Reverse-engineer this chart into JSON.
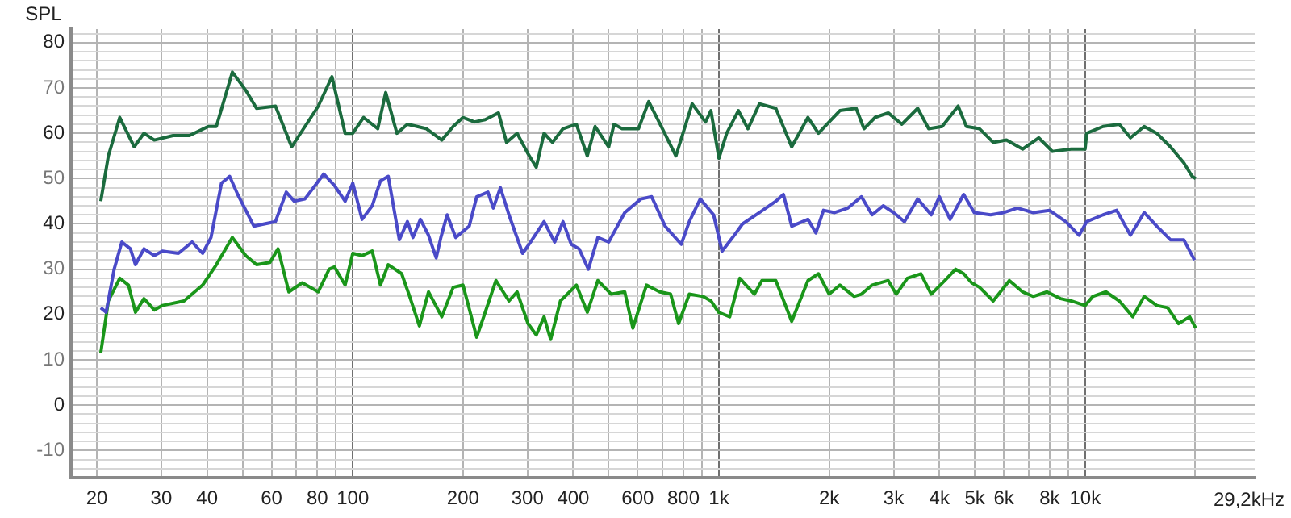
{
  "chart_data": {
    "type": "line",
    "ylabel": "SPL",
    "xlim": [
      17,
      29200
    ],
    "ylim": [
      -16,
      83
    ],
    "log": "x",
    "grid": true,
    "legend": false,
    "marker": "none",
    "line_style": "solid",
    "xticks": [
      20,
      30,
      40,
      {
        "value": 50,
        "label": null
      },
      60,
      {
        "value": 70,
        "label": null
      },
      80,
      {
        "value": 90,
        "label": null
      },
      100,
      200,
      300,
      400,
      {
        "value": 500,
        "label": null
      },
      600,
      {
        "value": 700,
        "label": null
      },
      800,
      {
        "value": 900,
        "label": null
      },
      {
        "value": 1000,
        "label": "1k"
      },
      {
        "value": 2000,
        "label": "2k"
      },
      {
        "value": 3000,
        "label": "3k"
      },
      {
        "value": 4000,
        "label": "4k"
      },
      {
        "value": 5000,
        "label": "5k"
      },
      {
        "value": 6000,
        "label": "6k"
      },
      {
        "value": 7000,
        "label": null
      },
      {
        "value": 8000,
        "label": "8k"
      },
      {
        "value": 9000,
        "label": null
      },
      {
        "value": 10000,
        "label": "10k"
      },
      {
        "value": 20000,
        "label": null
      }
    ],
    "xlabel": "29,2kHz",
    "yticks": [
      {
        "value": -14,
        "label": null
      },
      {
        "value": -12,
        "label": null
      },
      -10,
      {
        "value": -8,
        "label": null
      },
      {
        "value": -6,
        "label": null
      },
      {
        "value": -4,
        "label": null
      },
      {
        "value": -2,
        "label": null
      },
      0,
      {
        "value": 2,
        "label": null
      },
      {
        "value": 4,
        "label": null
      },
      {
        "value": 6,
        "label": null
      },
      {
        "value": 8,
        "label": null
      },
      10,
      {
        "value": 12,
        "label": null
      },
      {
        "value": 14,
        "label": null
      },
      {
        "value": 16,
        "label": null
      },
      {
        "value": 18,
        "label": null
      },
      20,
      {
        "value": 22,
        "label": null
      },
      {
        "value": 24,
        "label": null
      },
      {
        "value": 26,
        "label": null
      },
      {
        "value": 28,
        "label": null
      },
      30,
      {
        "value": 32,
        "label": null
      },
      {
        "value": 34,
        "label": null
      },
      {
        "value": 36,
        "label": null
      },
      {
        "value": 38,
        "label": null
      },
      40,
      {
        "value": 42,
        "label": null
      },
      {
        "value": 44,
        "label": null
      },
      {
        "value": 46,
        "label": null
      },
      {
        "value": 48,
        "label": null
      },
      50,
      {
        "value": 52,
        "label": null
      },
      {
        "value": 54,
        "label": null
      },
      {
        "value": 56,
        "label": null
      },
      {
        "value": 58,
        "label": null
      },
      60,
      {
        "value": 62,
        "label": null
      },
      {
        "value": 64,
        "label": null
      },
      {
        "value": 66,
        "label": null
      },
      {
        "value": 68,
        "label": null
      },
      70,
      {
        "value": 72,
        "label": null
      },
      {
        "value": 74,
        "label": null
      },
      {
        "value": 76,
        "label": null
      },
      {
        "value": 78,
        "label": null
      },
      80,
      {
        "value": 82,
        "label": null
      }
    ],
    "series": [
      {
        "color": "#1b6b3e",
        "x": [
          20.5,
          21.5,
          23.1,
          25.3,
          26.9,
          28.7,
          32.3,
          35.8,
          40.3,
          42.4,
          46.9,
          51,
          54.6,
          61.5,
          68.1,
          80.5,
          87.7,
          95.3,
          100,
          107,
          117,
          123,
          132,
          141,
          159,
          175,
          188,
          200,
          215,
          230,
          250,
          263,
          281,
          301,
          317,
          333,
          351,
          375,
          408,
          437,
          459,
          500,
          517,
          544,
          603,
          643,
          701,
          763,
          845,
          919,
          951,
          1000,
          1050,
          1130,
          1200,
          1290,
          1430,
          1580,
          1750,
          1870,
          2000,
          2140,
          2370,
          2490,
          2670,
          2900,
          3160,
          3490,
          3740,
          4070,
          4500,
          4740,
          5150,
          5610,
          6100,
          6750,
          7470,
          8140,
          9160,
          10000,
          10100,
          11200,
          12400,
          13300,
          14500,
          15700,
          17100,
          18600,
          19600,
          20050
        ],
        "values": [
          45,
          55,
          63.5,
          57,
          60,
          58.5,
          59.5,
          59.5,
          61.5,
          61.5,
          73.5,
          69.5,
          65.5,
          66,
          57,
          66,
          72.5,
          60,
          60,
          63.5,
          61,
          69,
          60,
          62,
          61,
          58.5,
          61.5,
          63.5,
          62.5,
          63,
          64.5,
          58,
          60,
          55.5,
          52.5,
          60,
          58,
          61,
          62,
          55,
          61.5,
          57,
          62,
          61,
          61,
          67,
          61,
          55,
          66.5,
          62.5,
          65,
          54.5,
          60,
          65,
          61,
          66.5,
          65.5,
          57,
          63.5,
          60,
          62.5,
          65,
          65.5,
          61,
          63.5,
          64.5,
          62,
          65.5,
          61,
          61.5,
          66,
          61.5,
          61,
          58,
          58.5,
          56.5,
          59,
          56,
          56.5,
          56.5,
          60,
          61.5,
          62,
          59,
          61.5,
          60,
          57,
          53.5,
          50.5,
          50
        ]
      },
      {
        "color": "#4a4ac8",
        "x": [
          20.5,
          21.2,
          22.3,
          23.4,
          24.7,
          25.5,
          26.9,
          28.7,
          30.2,
          33.4,
          36.4,
          38.9,
          41,
          43.8,
          46.1,
          48.5,
          53.7,
          57.4,
          61.5,
          65.8,
          69.2,
          74,
          83.3,
          89.1,
          95.3,
          100,
          106,
          113,
          119,
          125,
          134,
          141,
          146,
          153,
          161,
          169,
          174,
          181,
          191,
          208,
          218,
          234,
          242,
          253,
          267,
          291,
          306,
          333,
          356,
          375,
          395,
          415,
          440,
          467,
          500,
          553,
          612,
          655,
          713,
          789,
          830,
          889,
          967,
          1020,
          1090,
          1160,
          1290,
          1430,
          1500,
          1580,
          1750,
          1840,
          1930,
          2070,
          2250,
          2450,
          2620,
          2810,
          3000,
          3210,
          3490,
          3800,
          4000,
          4280,
          4660,
          4980,
          5520,
          6000,
          6530,
          7220,
          7990,
          8850,
          9630,
          10100,
          11200,
          12200,
          13300,
          14500,
          15700,
          17100,
          18600,
          19900
        ],
        "values": [
          21.5,
          20.5,
          30,
          36,
          34.5,
          31,
          34.5,
          33,
          34,
          33.5,
          36,
          33.5,
          37,
          49,
          50.5,
          46.5,
          39.5,
          40,
          40.5,
          47,
          45,
          45.5,
          51,
          48.5,
          45,
          49,
          41,
          44,
          49.5,
          50.5,
          36.5,
          40.5,
          37,
          41,
          37.5,
          32.5,
          37,
          42,
          37,
          39.5,
          46,
          47,
          43.5,
          48,
          42,
          33.5,
          36,
          40.5,
          36,
          40.5,
          35.5,
          34.5,
          30,
          37,
          36,
          42.5,
          45.5,
          46,
          39.5,
          35.5,
          40.5,
          45.5,
          42,
          34,
          37,
          40,
          42.5,
          45,
          46.5,
          39.5,
          41,
          38,
          43,
          42.5,
          43.5,
          46,
          42,
          44,
          42.5,
          40.5,
          45.5,
          42,
          46,
          41,
          46.5,
          42.5,
          42,
          42.5,
          43.5,
          42.5,
          43,
          40.5,
          37.5,
          40.5,
          42,
          43,
          37.5,
          42.5,
          39.5,
          36.5,
          36.5,
          32
        ]
      },
      {
        "color": "#1a961a",
        "x": [
          20.5,
          21.5,
          23.1,
          24.4,
          25.5,
          26.9,
          28.7,
          30.2,
          34.6,
          38.9,
          42.4,
          46.9,
          51,
          54.6,
          59.4,
          62.5,
          66.9,
          72.8,
          80.5,
          86.2,
          89.1,
          95.3,
          100,
          106,
          113,
          119,
          125,
          136,
          143,
          152,
          161,
          175,
          188,
          200,
          218,
          230,
          246,
          267,
          281,
          301,
          317,
          333,
          347,
          369,
          408,
          437,
          467,
          508,
          553,
          582,
          634,
          689,
          738,
          776,
          830,
          904,
          951,
          998,
          1070,
          1140,
          1250,
          1310,
          1430,
          1580,
          1750,
          1870,
          2000,
          2140,
          2340,
          2450,
          2620,
          2900,
          3050,
          3270,
          3560,
          3800,
          4140,
          4430,
          4660,
          4900,
          5150,
          5610,
          6210,
          6750,
          7220,
          7870,
          8570,
          9160,
          10000,
          10500,
          11400,
          12400,
          13500,
          14500,
          15700,
          16800,
          18000,
          19300,
          20050
        ],
        "values": [
          11.5,
          23,
          28,
          26.5,
          20.5,
          23.5,
          21,
          22,
          23,
          26.5,
          31,
          37,
          33,
          31,
          31.5,
          34.5,
          25,
          27,
          25,
          30,
          30.5,
          26.5,
          33.5,
          33,
          34,
          26.5,
          31,
          29,
          24,
          17.5,
          25,
          19.5,
          26,
          26.5,
          15,
          20.5,
          27.5,
          23,
          25,
          18,
          15.5,
          19.5,
          14.5,
          23,
          26.5,
          20.5,
          27.5,
          24.5,
          25,
          17,
          26.5,
          25,
          24.5,
          18,
          24.5,
          24,
          23,
          20.5,
          19.5,
          28,
          24.5,
          27.5,
          27.5,
          18.5,
          27.5,
          29,
          24.5,
          26.5,
          24,
          24.5,
          26.5,
          27.5,
          24.5,
          28,
          29,
          24.5,
          27.5,
          30,
          29,
          27,
          26,
          23,
          27.5,
          25,
          24,
          25,
          23.5,
          23,
          22,
          24,
          25,
          23,
          19.5,
          24,
          22,
          21.5,
          18,
          19.5,
          17
        ]
      }
    ]
  }
}
